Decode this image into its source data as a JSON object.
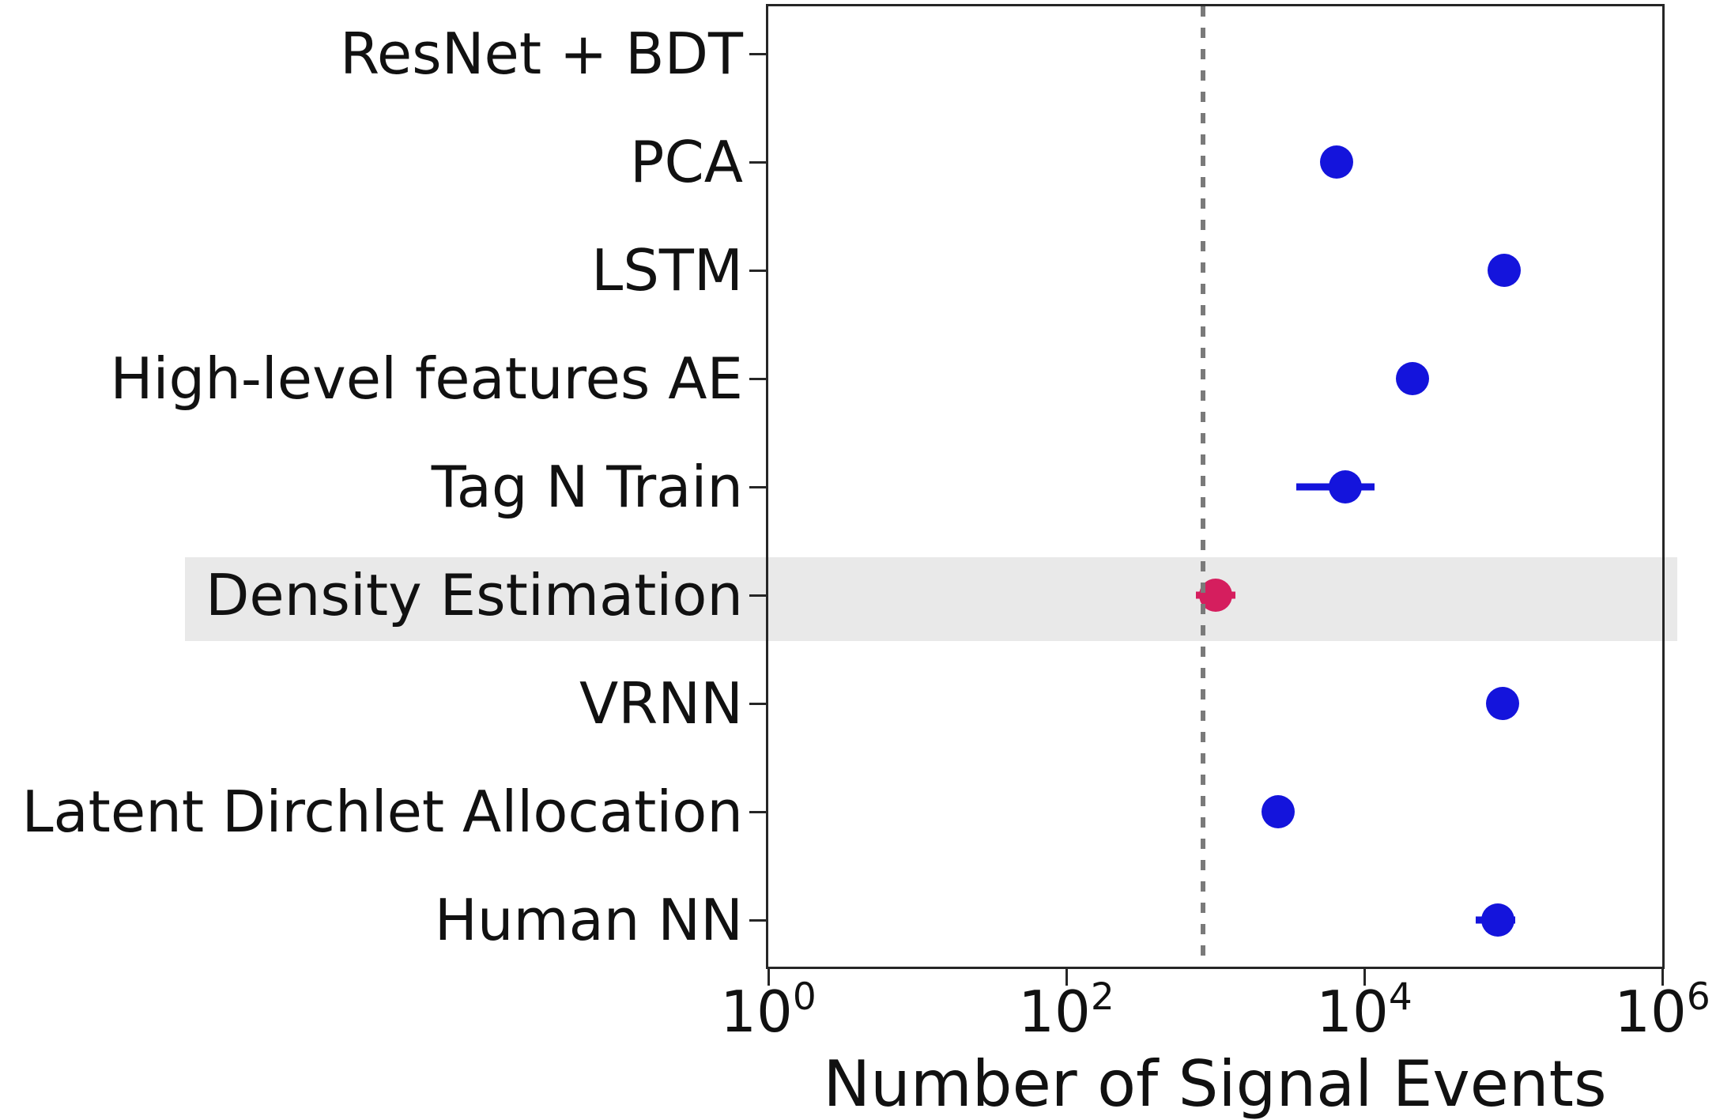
{
  "chart_data": {
    "type": "scatter",
    "orientation": "horizontal-categorical",
    "title": "",
    "xlabel": "Number of Signal Events",
    "x_scale": "log",
    "x_axis_exponent_range": [
      0,
      6
    ],
    "x_tick_base": "10",
    "x_tick_exponents": [
      0,
      2,
      4,
      6
    ],
    "grid": false,
    "legend": "none",
    "axis_color": "#262626",
    "reference_line": {
      "style": "dotted",
      "color": "#7a7a7a",
      "value": 830
    },
    "highlight": {
      "category": "Density Estimation",
      "band_color": "#e9e9e9"
    },
    "marker_colors": {
      "default": "#1414dc",
      "highlighted": "#d51e5e"
    },
    "categories": [
      "ResNet + BDT",
      "PCA",
      "LSTM",
      "High-level features AE",
      "Tag N Train",
      "Density Estimation",
      "VRNN",
      "Latent Dirchlet Allocation",
      "Human NN"
    ],
    "points": [
      {
        "category": "ResNet + BDT",
        "value": null
      },
      {
        "category": "PCA",
        "value": 6500,
        "color": "#1414dc"
      },
      {
        "category": "LSTM",
        "value": 87000,
        "color": "#1414dc"
      },
      {
        "category": "High-level features AE",
        "value": 21000,
        "color": "#1414dc"
      },
      {
        "category": "Tag N Train",
        "value": 7500,
        "err_low": 3500,
        "err_high": 11700,
        "color": "#1414dc"
      },
      {
        "category": "Density Estimation",
        "value": 1000,
        "err_low": 740,
        "err_high": 1360,
        "color": "#d51e5e"
      },
      {
        "category": "VRNN",
        "value": 85000,
        "color": "#1414dc"
      },
      {
        "category": "Latent Dirchlet Allocation",
        "value": 2650,
        "color": "#1414dc"
      },
      {
        "category": "Human NN",
        "value": 79000,
        "err_low": 56000,
        "err_high": 103000,
        "color": "#1414dc"
      }
    ]
  }
}
